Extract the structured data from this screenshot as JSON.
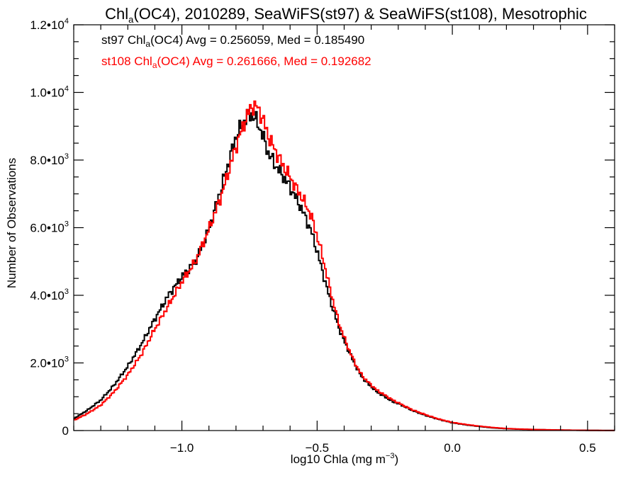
{
  "chart_data": {
    "type": "line",
    "title": {
      "pre": "Chl",
      "sub": "a",
      "post": "(OC4), 2010289, SeaWiFS(st97) & SeaWiFS(st108), Mesotrophic"
    },
    "xlabel": {
      "pre": "log10 Chla (mg m",
      "sup": "−3",
      "post": ")"
    },
    "ylabel": "Number of Observations",
    "xlim": [
      -1.4,
      0.6
    ],
    "ylim": [
      0,
      12000
    ],
    "x_ticks": [
      {
        "value": -1.0,
        "label": "−1.0"
      },
      {
        "value": -0.5,
        "label": "−0.5"
      },
      {
        "value": 0.0,
        "label": "0.0"
      },
      {
        "value": 0.5,
        "label": "0.5"
      }
    ],
    "y_ticks": [
      {
        "value": 0,
        "mant": "0",
        "exp": ""
      },
      {
        "value": 2000,
        "mant": "2.0•10",
        "exp": "3"
      },
      {
        "value": 4000,
        "mant": "4.0•10",
        "exp": "3"
      },
      {
        "value": 6000,
        "mant": "6.0•10",
        "exp": "3"
      },
      {
        "value": 8000,
        "mant": "8.0•10",
        "exp": "3"
      },
      {
        "value": 10000,
        "mant": "1.0•10",
        "exp": "4"
      },
      {
        "value": 12000,
        "mant": "1.2•10",
        "exp": "4"
      }
    ],
    "series": [
      {
        "name": "st97",
        "color": "#000000",
        "legend": {
          "pre": "st97 Chl",
          "sub": "a",
          "post": "(OC4) Avg = 0.256059, Med = 0.185490"
        },
        "x": [
          -1.4,
          -1.35,
          -1.3,
          -1.25,
          -1.2,
          -1.15,
          -1.1,
          -1.05,
          -1.0,
          -0.95,
          -0.9,
          -0.85,
          -0.8,
          -0.76,
          -0.74,
          -0.72,
          -0.7,
          -0.68,
          -0.65,
          -0.62,
          -0.6,
          -0.58,
          -0.56,
          -0.54,
          -0.52,
          -0.5,
          -0.48,
          -0.46,
          -0.44,
          -0.42,
          -0.4,
          -0.38,
          -0.36,
          -0.34,
          -0.32,
          -0.3,
          -0.28,
          -0.26,
          -0.24,
          -0.22,
          -0.2,
          -0.15,
          -0.1,
          -0.05,
          0.0,
          0.05,
          0.1,
          0.15,
          0.2,
          0.25,
          0.3,
          0.35,
          0.4,
          0.45,
          0.5,
          0.55,
          0.6
        ],
        "y": [
          350,
          600,
          900,
          1350,
          1900,
          2550,
          3300,
          4000,
          4550,
          5000,
          5950,
          7300,
          8700,
          9300,
          9350,
          9100,
          8700,
          8200,
          7800,
          7450,
          7200,
          6900,
          6600,
          6250,
          5850,
          5300,
          4700,
          4100,
          3550,
          3050,
          2650,
          2300,
          1950,
          1650,
          1450,
          1300,
          1150,
          1050,
          950,
          850,
          800,
          600,
          450,
          330,
          230,
          170,
          120,
          80,
          55,
          40,
          30,
          22,
          15,
          10,
          6,
          3,
          2
        ]
      },
      {
        "name": "st108",
        "color": "#ff0000",
        "legend": {
          "pre": "st108 Chl",
          "sub": "a",
          "post": "(OC4) Avg = 0.261666, Med = 0.192682"
        },
        "x": [
          -1.4,
          -1.35,
          -1.3,
          -1.25,
          -1.2,
          -1.15,
          -1.1,
          -1.05,
          -1.0,
          -0.95,
          -0.9,
          -0.85,
          -0.8,
          -0.76,
          -0.74,
          -0.72,
          -0.7,
          -0.68,
          -0.65,
          -0.62,
          -0.6,
          -0.58,
          -0.56,
          -0.54,
          -0.52,
          -0.5,
          -0.48,
          -0.46,
          -0.44,
          -0.42,
          -0.4,
          -0.38,
          -0.36,
          -0.34,
          -0.32,
          -0.3,
          -0.28,
          -0.26,
          -0.24,
          -0.22,
          -0.2,
          -0.15,
          -0.1,
          -0.05,
          0.0,
          0.05,
          0.1,
          0.15,
          0.2,
          0.25,
          0.3,
          0.35,
          0.4,
          0.45,
          0.5,
          0.55,
          0.6
        ],
        "y": [
          300,
          500,
          750,
          1150,
          1650,
          2250,
          3000,
          3700,
          4400,
          5000,
          5950,
          7050,
          8400,
          9300,
          9600,
          9550,
          9200,
          8700,
          8200,
          7750,
          7500,
          7200,
          6950,
          6650,
          6300,
          5750,
          5150,
          4450,
          3800,
          3200,
          2750,
          2350,
          2000,
          1700,
          1500,
          1350,
          1200,
          1100,
          1000,
          900,
          820,
          620,
          470,
          340,
          240,
          180,
          130,
          90,
          60,
          45,
          32,
          24,
          16,
          11,
          7,
          4,
          2
        ]
      }
    ],
    "grid": false,
    "legend_position": "top-left"
  }
}
